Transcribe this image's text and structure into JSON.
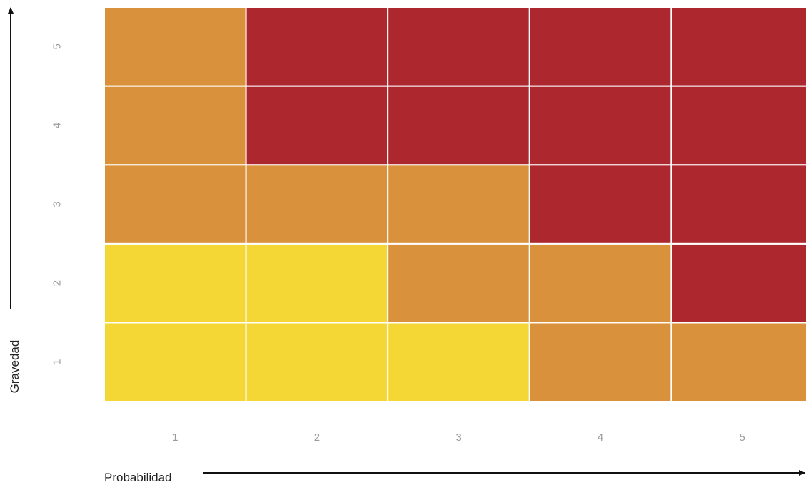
{
  "chart_data": {
    "type": "heatmap",
    "xlabel": "Probabilidad",
    "ylabel": "Gravedad",
    "x": [
      1,
      2,
      3,
      4,
      5
    ],
    "y": [
      1,
      2,
      3,
      4,
      5
    ],
    "x_tick_labels": [
      "1",
      "2",
      "3",
      "4",
      "5"
    ],
    "y_tick_labels": [
      "1",
      "2",
      "3",
      "4",
      "5"
    ],
    "levels": {
      "1": "#f4d634",
      "2": "#d9913b",
      "3": "#ad272f"
    },
    "grid": [
      [
        1,
        1,
        1,
        2,
        2
      ],
      [
        1,
        1,
        2,
        2,
        3
      ],
      [
        2,
        2,
        2,
        3,
        3
      ],
      [
        2,
        3,
        3,
        3,
        3
      ],
      [
        2,
        3,
        3,
        3,
        3
      ]
    ],
    "grid_orientation": "rows from Gravedad 1 (bottom) to Gravedad 5 (top); columns from Probabilidad 1 to 5"
  }
}
